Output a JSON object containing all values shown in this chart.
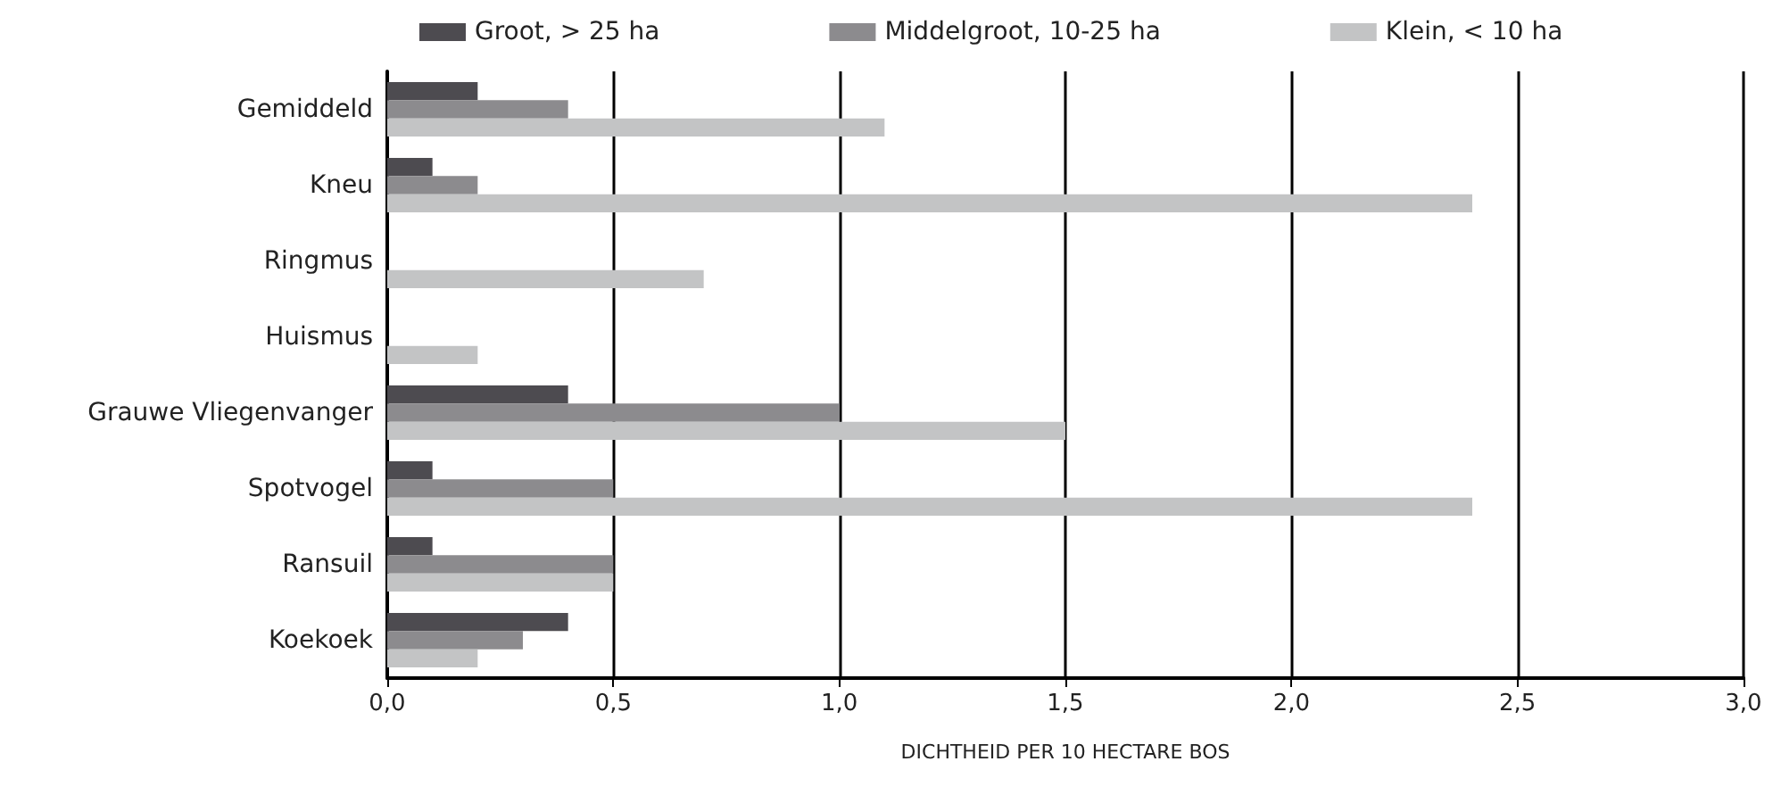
{
  "chart_data": {
    "type": "bar",
    "orientation": "horizontal",
    "xlabel": "DICHTHEID PER 10 HECTARE BOS",
    "categories": [
      "Gemiddeld",
      "Kneu",
      "Ringmus",
      "Huismus",
      "Grauwe Vliegenvanger",
      "Spotvogel",
      "Ransuil",
      "Koekoek"
    ],
    "series": [
      {
        "name": "Groot, > 25 ha",
        "color": "#4d4b50",
        "values": [
          0.2,
          0.1,
          0,
          0,
          0.4,
          0.1,
          0.1,
          0.4
        ]
      },
      {
        "name": "Middelgroot, 10-25 ha",
        "color": "#8c8b8e",
        "values": [
          0.4,
          0.2,
          0,
          0,
          1.0,
          0.5,
          0.5,
          0.3
        ]
      },
      {
        "name": "Klein, < 10 ha",
        "color": "#c3c4c5",
        "values": [
          1.1,
          2.4,
          0.7,
          0.2,
          1.5,
          2.4,
          0.5,
          0.2
        ]
      }
    ],
    "xlim": [
      0,
      3
    ],
    "xticks": [
      {
        "value": 0,
        "label": "0,0"
      },
      {
        "value": 0.5,
        "label": "0,5"
      },
      {
        "value": 1,
        "label": "1,0"
      },
      {
        "value": 1.5,
        "label": "1,5"
      },
      {
        "value": 2,
        "label": "2,0"
      },
      {
        "value": 2.5,
        "label": "2,5"
      },
      {
        "value": 3,
        "label": "3,0"
      }
    ],
    "grid": "x",
    "legend": "top"
  }
}
